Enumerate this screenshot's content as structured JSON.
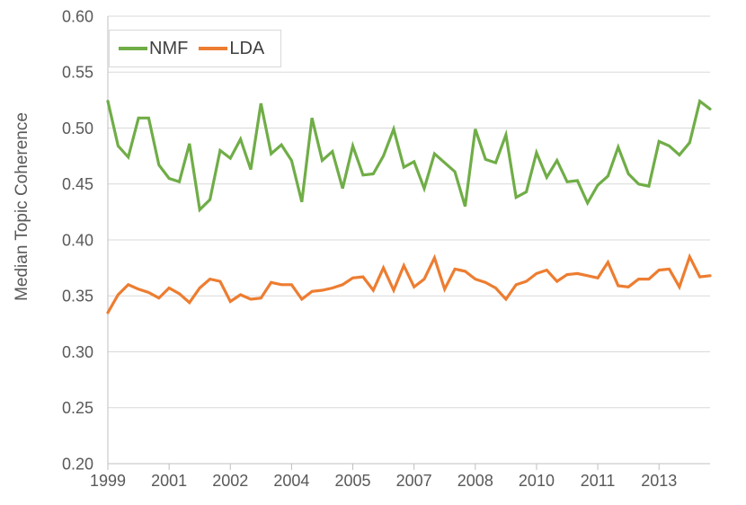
{
  "colors": {
    "nmf_green": "#70ad47",
    "lda_orange": "#ed7d31",
    "grid_line": "#d9d9d9",
    "axis_line": "#bfbfbf",
    "axis_text": "#595959",
    "legend_text": "#404040",
    "legend_border": "#d9d9d9",
    "background": "#ffffff"
  },
  "chart_data": {
    "type": "line",
    "title": "",
    "xlabel": "",
    "ylabel": "Median Topic Coherence",
    "ylim": [
      0.2,
      0.6
    ],
    "ytick_labels": [
      "0.20",
      "0.25",
      "0.30",
      "0.35",
      "0.40",
      "0.45",
      "0.50",
      "0.55",
      "0.60"
    ],
    "grid": "horizontal-only",
    "legend_position": "top-left-inside-box",
    "x_unit": "quarterly, 1999Q1 to 2013Q4 (60 points), axis ticks every 6 quarters",
    "xticks": [
      {
        "label": "1999",
        "q": 0
      },
      {
        "label": "2001",
        "q": 6
      },
      {
        "label": "2002",
        "q": 12
      },
      {
        "label": "2004",
        "q": 18
      },
      {
        "label": "2005",
        "q": 24
      },
      {
        "label": "2007",
        "q": 30
      },
      {
        "label": "2008",
        "q": 36
      },
      {
        "label": "2010",
        "q": 42
      },
      {
        "label": "2011",
        "q": 48
      },
      {
        "label": "2013",
        "q": 54
      }
    ],
    "series": [
      {
        "name": "NMF",
        "color": "#70ad47",
        "values": [
          0.524,
          0.484,
          0.474,
          0.509,
          0.509,
          0.467,
          0.455,
          0.452,
          0.486,
          0.427,
          0.436,
          0.48,
          0.473,
          0.49,
          0.463,
          0.522,
          0.477,
          0.485,
          0.471,
          0.434,
          0.509,
          0.471,
          0.479,
          0.446,
          0.484,
          0.458,
          0.459,
          0.475,
          0.499,
          0.465,
          0.47,
          0.446,
          0.477,
          0.469,
          0.461,
          0.43,
          0.499,
          0.472,
          0.469,
          0.494,
          0.438,
          0.443,
          0.478,
          0.456,
          0.471,
          0.452,
          0.453,
          0.433,
          0.449,
          0.457,
          0.483,
          0.459,
          0.45,
          0.448,
          0.488,
          0.484,
          0.476,
          0.487,
          0.524,
          0.517
        ]
      },
      {
        "name": "LDA",
        "color": "#ed7d31",
        "values": [
          0.335,
          0.351,
          0.36,
          0.356,
          0.353,
          0.348,
          0.357,
          0.352,
          0.344,
          0.357,
          0.365,
          0.363,
          0.345,
          0.351,
          0.347,
          0.348,
          0.362,
          0.36,
          0.36,
          0.347,
          0.354,
          0.355,
          0.357,
          0.36,
          0.366,
          0.367,
          0.355,
          0.375,
          0.355,
          0.377,
          0.358,
          0.365,
          0.384,
          0.356,
          0.374,
          0.372,
          0.365,
          0.362,
          0.357,
          0.347,
          0.36,
          0.363,
          0.37,
          0.373,
          0.363,
          0.369,
          0.37,
          0.368,
          0.366,
          0.38,
          0.359,
          0.358,
          0.365,
          0.365,
          0.373,
          0.374,
          0.358,
          0.385,
          0.367,
          0.368
        ]
      }
    ]
  }
}
